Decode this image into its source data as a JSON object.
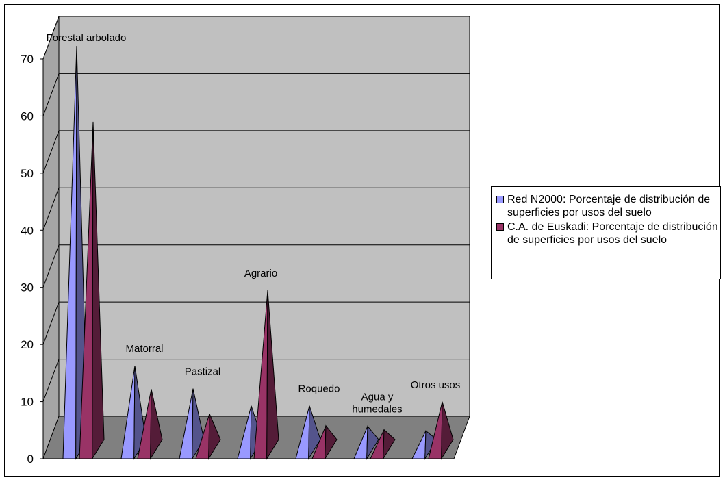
{
  "chart_data": {
    "type": "bar",
    "shape": "3d-cone",
    "categories": [
      "Forestal arbolado",
      "Matorral",
      "Pastizal",
      "Agrario",
      "Roquedo",
      "Agua y humedales",
      "Otros usos"
    ],
    "series": [
      {
        "name": "Red N2000: Porcentaje de distribución de superficies por usos del suelo",
        "color": "#9999ff",
        "values": [
          70.6,
          14.6,
          10.6,
          7.6,
          7.6,
          4.0,
          3.2
        ]
      },
      {
        "name": "C.A. de Euskadi: Porcentaje de distribución de superficies por usos del suelo",
        "color": "#993366",
        "values": [
          57.3,
          10.5,
          6.2,
          27.8,
          4.1,
          3.4,
          8.3
        ]
      }
    ],
    "yaxis": {
      "min": 0,
      "max": 70,
      "ticks": [
        "0",
        "10",
        "20",
        "30",
        "40",
        "50",
        "60",
        "70"
      ]
    },
    "grid": true,
    "legend_position": "right"
  }
}
